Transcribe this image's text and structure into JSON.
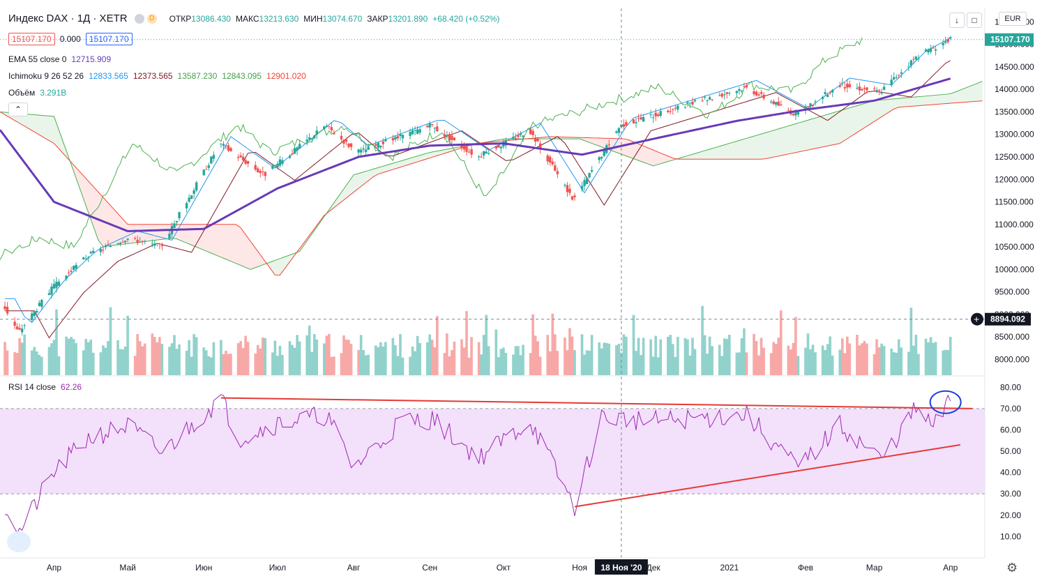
{
  "header": {
    "symbol_title": "Индекс DAX · 1Д · XETR",
    "market_status_letter": "D",
    "ohlc": [
      {
        "k": "ОТКР",
        "v": "13086.430"
      },
      {
        "k": "МАКС",
        "v": "13213.630"
      },
      {
        "k": "МИН",
        "v": "13074.670"
      },
      {
        "k": "ЗАКР",
        "v": "13201.890"
      }
    ],
    "change": "+68.420 (+0.52%)",
    "sell_price": "15107.170",
    "spread": "0.000",
    "buy_price": "15107.170",
    "currency": "EUR"
  },
  "indicators": {
    "ema_label": "EMA 55 close 0",
    "ema_value": "12715.909",
    "ichimoku_label": "Ichimoku 9 26 52 26",
    "ichimoku_values": [
      "12833.565",
      "12373.565",
      "13587.230",
      "12843.095",
      "12901.020"
    ],
    "volume_label": "Объём",
    "volume_value": "3.291B",
    "rsi_label": "RSI 14 close",
    "rsi_value": "62.26"
  },
  "price_axis": {
    "ticks": [
      "15500.000",
      "15000.000",
      "14500.000",
      "14000.000",
      "13500.000",
      "13000.000",
      "12500.000",
      "12000.000",
      "11500.000",
      "11000.000",
      "10500.000",
      "10000.000",
      "9500.000",
      "9000.000",
      "8500.000",
      "8000.000"
    ],
    "last_price_label": "15107.170",
    "crosshair_label": "8894.092"
  },
  "rsi_axis": {
    "ticks": [
      "80.00",
      "70.00",
      "60.00",
      "50.00",
      "40.00",
      "30.00",
      "20.00",
      "10.00"
    ]
  },
  "time_axis": {
    "labels": [
      "Апр",
      "Май",
      "Июн",
      "Июл",
      "Авг",
      "Сен",
      "Окт",
      "Ноя",
      "Дек",
      "2021",
      "Фев",
      "Мар",
      "Апр"
    ],
    "crosshair_label": "18 Ноя '20"
  },
  "colors": {
    "up": "#26a69a",
    "down": "#ef5350",
    "ema": "#673ab7",
    "tenkan": "#2196f3",
    "kijun": "#801922",
    "span_a": "#4caf50",
    "span_b": "#f44336",
    "rsi": "#9c27b0",
    "rsi_band": "#f3e0fb",
    "trend": "#e53935",
    "annotation": "#1e40d8"
  },
  "chart_data": {
    "type": "candlestick",
    "title": "Индекс DAX · 1Д · XETR",
    "price_range": [
      7650,
      15800
    ],
    "x_range": [
      "2020-03-10",
      "2021-04-15"
    ],
    "price_keypoints": [
      {
        "x": "2020-03-12",
        "y": 9200
      },
      {
        "x": "2020-03-18",
        "y": 8600
      },
      {
        "x": "2020-04-01",
        "y": 9600
      },
      {
        "x": "2020-04-15",
        "y": 10300
      },
      {
        "x": "2020-05-01",
        "y": 10700
      },
      {
        "x": "2020-05-15",
        "y": 10500
      },
      {
        "x": "2020-06-08",
        "y": 12800
      },
      {
        "x": "2020-06-26",
        "y": 12100
      },
      {
        "x": "2020-07-21",
        "y": 13200
      },
      {
        "x": "2020-08-03",
        "y": 12600
      },
      {
        "x": "2020-09-02",
        "y": 13200
      },
      {
        "x": "2020-09-21",
        "y": 12500
      },
      {
        "x": "2020-10-12",
        "y": 13100
      },
      {
        "x": "2020-10-30",
        "y": 11550
      },
      {
        "x": "2020-11-18",
        "y": 13200
      },
      {
        "x": "2021-01-08",
        "y": 14050
      },
      {
        "x": "2021-01-29",
        "y": 13430
      },
      {
        "x": "2021-02-15",
        "y": 14100
      },
      {
        "x": "2021-03-04",
        "y": 13950
      },
      {
        "x": "2021-03-18",
        "y": 14700
      },
      {
        "x": "2021-04-01",
        "y": 15107
      }
    ],
    "ema55_keypoints": [
      {
        "x": "2020-03-10",
        "y": 13100
      },
      {
        "x": "2020-04-01",
        "y": 11500
      },
      {
        "x": "2020-05-01",
        "y": 10850
      },
      {
        "x": "2020-06-01",
        "y": 10900
      },
      {
        "x": "2020-07-01",
        "y": 11800
      },
      {
        "x": "2020-08-03",
        "y": 12500
      },
      {
        "x": "2020-09-01",
        "y": 12750
      },
      {
        "x": "2020-10-01",
        "y": 12800
      },
      {
        "x": "2020-11-02",
        "y": 12550
      },
      {
        "x": "2020-12-01",
        "y": 12900
      },
      {
        "x": "2021-01-04",
        "y": 13300
      },
      {
        "x": "2021-02-01",
        "y": 13550
      },
      {
        "x": "2021-03-01",
        "y": 13750
      },
      {
        "x": "2021-04-01",
        "y": 14240
      }
    ],
    "span_a_keypoints": [
      {
        "x": "2020-03-10",
        "y": 13500
      },
      {
        "x": "2020-04-01",
        "y": 13400
      },
      {
        "x": "2020-04-20",
        "y": 10500
      },
      {
        "x": "2020-05-20",
        "y": 10700
      },
      {
        "x": "2020-06-20",
        "y": 10000
      },
      {
        "x": "2020-07-10",
        "y": 10400
      },
      {
        "x": "2020-08-01",
        "y": 12100
      },
      {
        "x": "2020-09-01",
        "y": 12600
      },
      {
        "x": "2020-10-01",
        "y": 12900
      },
      {
        "x": "2020-11-01",
        "y": 12900
      },
      {
        "x": "2020-12-01",
        "y": 12300
      },
      {
        "x": "2021-01-01",
        "y": 12800
      },
      {
        "x": "2021-02-01",
        "y": 13300
      },
      {
        "x": "2021-03-01",
        "y": 13750
      },
      {
        "x": "2021-04-01",
        "y": 13900
      },
      {
        "x": "2021-04-15",
        "y": 14200
      }
    ],
    "span_b_keypoints": [
      {
        "x": "2020-03-10",
        "y": 13500
      },
      {
        "x": "2020-04-01",
        "y": 12800
      },
      {
        "x": "2020-05-01",
        "y": 11000
      },
      {
        "x": "2020-06-15",
        "y": 11000
      },
      {
        "x": "2020-07-01",
        "y": 9800
      },
      {
        "x": "2020-07-20",
        "y": 11200
      },
      {
        "x": "2020-08-10",
        "y": 12100
      },
      {
        "x": "2020-09-20",
        "y": 12800
      },
      {
        "x": "2020-10-20",
        "y": 12950
      },
      {
        "x": "2020-11-20",
        "y": 12900
      },
      {
        "x": "2020-12-10",
        "y": 12450
      },
      {
        "x": "2021-01-15",
        "y": 12450
      },
      {
        "x": "2021-02-15",
        "y": 12800
      },
      {
        "x": "2021-03-10",
        "y": 13600
      },
      {
        "x": "2021-04-15",
        "y": 13750
      }
    ],
    "rsi_range": [
      0,
      85
    ],
    "rsi_overbought": 70,
    "rsi_oversold": 30,
    "rsi_keypoints": [
      {
        "x": "2020-03-10",
        "y": 29
      },
      {
        "x": "2020-03-18",
        "y": 12
      },
      {
        "x": "2020-04-01",
        "y": 40
      },
      {
        "x": "2020-04-15",
        "y": 56
      },
      {
        "x": "2020-05-01",
        "y": 62
      },
      {
        "x": "2020-05-15",
        "y": 49
      },
      {
        "x": "2020-06-08",
        "y": 75
      },
      {
        "x": "2020-06-15",
        "y": 56
      },
      {
        "x": "2020-07-01",
        "y": 63
      },
      {
        "x": "2020-07-21",
        "y": 67
      },
      {
        "x": "2020-08-01",
        "y": 42
      },
      {
        "x": "2020-08-20",
        "y": 64
      },
      {
        "x": "2020-09-02",
        "y": 65
      },
      {
        "x": "2020-09-21",
        "y": 47
      },
      {
        "x": "2020-10-12",
        "y": 64
      },
      {
        "x": "2020-10-30",
        "y": 24
      },
      {
        "x": "2020-11-10",
        "y": 66
      },
      {
        "x": "2020-12-01",
        "y": 64
      },
      {
        "x": "2021-01-08",
        "y": 67
      },
      {
        "x": "2021-01-29",
        "y": 42
      },
      {
        "x": "2021-02-15",
        "y": 62
      },
      {
        "x": "2021-03-04",
        "y": 46
      },
      {
        "x": "2021-03-18",
        "y": 70
      },
      {
        "x": "2021-03-25",
        "y": 61
      },
      {
        "x": "2021-04-01",
        "y": 74
      }
    ],
    "trendlines": [
      {
        "from": {
          "x": "2020-06-08",
          "y": 75
        },
        "to": {
          "x": "2021-04-10",
          "y": 70
        }
      },
      {
        "from": {
          "x": "2020-10-30",
          "y": 24
        },
        "to": {
          "x": "2021-04-05",
          "y": 53
        }
      }
    ]
  }
}
